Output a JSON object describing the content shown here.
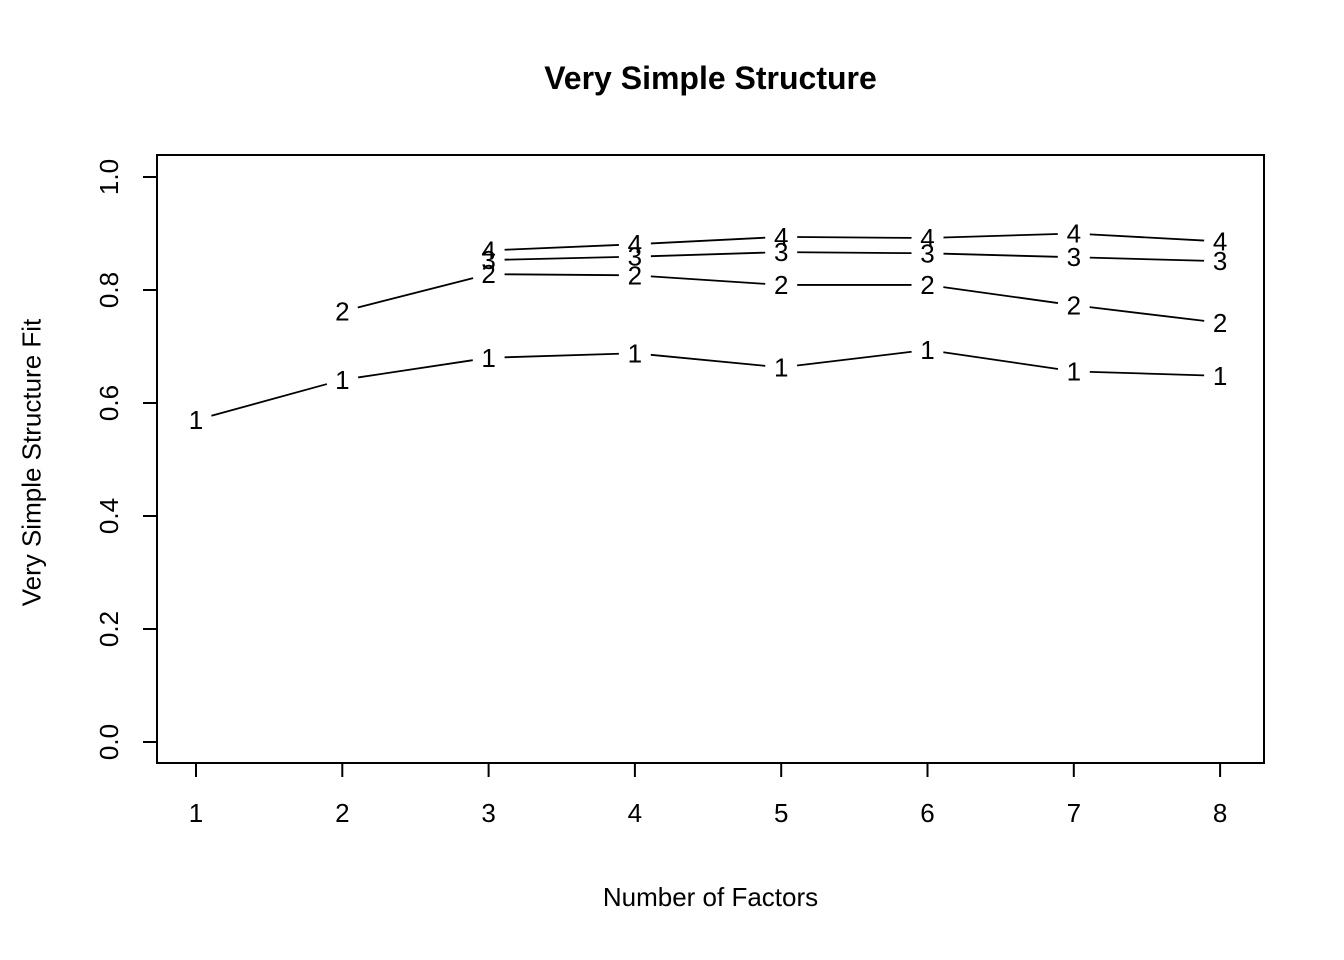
{
  "chart_data": {
    "type": "line",
    "title": "Very Simple Structure",
    "xlabel": "Number of Factors",
    "ylabel": "Very Simple Structure Fit",
    "xlim": [
      1,
      8
    ],
    "ylim": [
      0.0,
      1.0
    ],
    "x_ticks": [
      "1",
      "2",
      "3",
      "4",
      "5",
      "6",
      "7",
      "8"
    ],
    "y_ticks": [
      "0.0",
      "0.2",
      "0.4",
      "0.6",
      "0.8",
      "1.0"
    ],
    "y_tick_values": [
      0.0,
      0.2,
      0.4,
      0.6,
      0.8,
      1.0
    ],
    "grid": false,
    "legend_position": "none",
    "point_marker": "digit-of-complexity",
    "line_color": "#000000",
    "background_color": "#ffffff",
    "series": [
      {
        "name": "vss-complexity-1",
        "label": "1",
        "x": [
          1,
          2,
          3,
          4,
          5,
          6,
          7,
          8
        ],
        "y": [
          0.57,
          0.641,
          0.68,
          0.688,
          0.663,
          0.694,
          0.656,
          0.648
        ]
      },
      {
        "name": "vss-complexity-2",
        "label": "2",
        "x": [
          2,
          3,
          4,
          5,
          6,
          7,
          8
        ],
        "y": [
          0.762,
          0.828,
          0.826,
          0.809,
          0.809,
          0.773,
          0.742
        ]
      },
      {
        "name": "vss-complexity-3",
        "label": "3",
        "x": [
          3,
          4,
          5,
          6,
          7,
          8
        ],
        "y": [
          0.853,
          0.859,
          0.867,
          0.865,
          0.858,
          0.851
        ]
      },
      {
        "name": "vss-complexity-4",
        "label": "4",
        "x": [
          3,
          4,
          5,
          6,
          7,
          8
        ],
        "y": [
          0.87,
          0.881,
          0.894,
          0.892,
          0.9,
          0.886
        ]
      }
    ]
  }
}
